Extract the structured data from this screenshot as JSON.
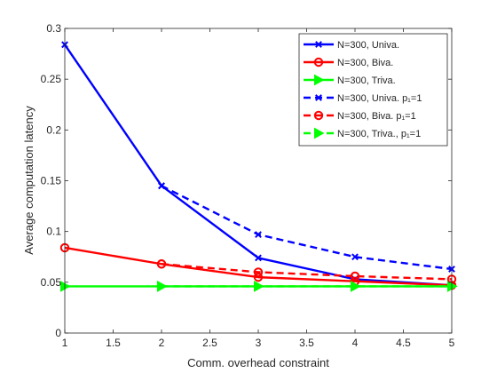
{
  "chart_data": {
    "type": "line",
    "xlabel": "Comm. overhead constraint",
    "ylabel": "Average computation latency",
    "xlim": [
      1,
      5
    ],
    "ylim": [
      0,
      0.3
    ],
    "x": [
      1,
      2,
      3,
      4,
      5
    ],
    "x_ticks": [
      "1",
      "1.5",
      "2",
      "2.5",
      "3",
      "3.5",
      "4",
      "4.5",
      "5"
    ],
    "y_ticks": [
      "0",
      "0.05",
      "0.1",
      "0.15",
      "0.2",
      "0.25",
      "0.3"
    ],
    "grid": false,
    "legend_position": "top-right",
    "series": [
      {
        "name": "N=300, Univa.",
        "x": [
          1,
          2,
          3,
          4,
          5
        ],
        "values": [
          0.284,
          0.145,
          0.074,
          0.053,
          0.047
        ],
        "color": "#0000ff",
        "dash": "solid",
        "marker": "x"
      },
      {
        "name": "N=300, Biva.",
        "x": [
          1,
          2,
          3,
          4,
          5
        ],
        "values": [
          0.084,
          0.068,
          0.055,
          0.051,
          0.047
        ],
        "color": "#ff0000",
        "dash": "solid",
        "marker": "circle"
      },
      {
        "name": "N=300, Triva.",
        "x": [
          1,
          2,
          3,
          4,
          5
        ],
        "values": [
          0.046,
          0.046,
          0.046,
          0.046,
          0.046
        ],
        "color": "#00ff00",
        "dash": "solid",
        "marker": "triangle-right"
      },
      {
        "name": "N=300, Univa. p₁=1",
        "x": [
          2,
          3,
          4,
          5
        ],
        "values": [
          0.145,
          0.097,
          0.075,
          0.063
        ],
        "color": "#0000ff",
        "dash": "dashed",
        "marker": "x"
      },
      {
        "name": "N=300, Biva. p₁=1",
        "x": [
          2,
          3,
          4,
          5
        ],
        "values": [
          0.068,
          0.06,
          0.056,
          0.053
        ],
        "color": "#ff0000",
        "dash": "dashed",
        "marker": "circle"
      },
      {
        "name": "N=300, Triva., p₁=1",
        "x": [
          2,
          3,
          4,
          5
        ],
        "values": [
          0.046,
          0.046,
          0.046,
          0.046
        ],
        "color": "#00ff00",
        "dash": "dashed",
        "marker": "triangle-right"
      }
    ]
  }
}
